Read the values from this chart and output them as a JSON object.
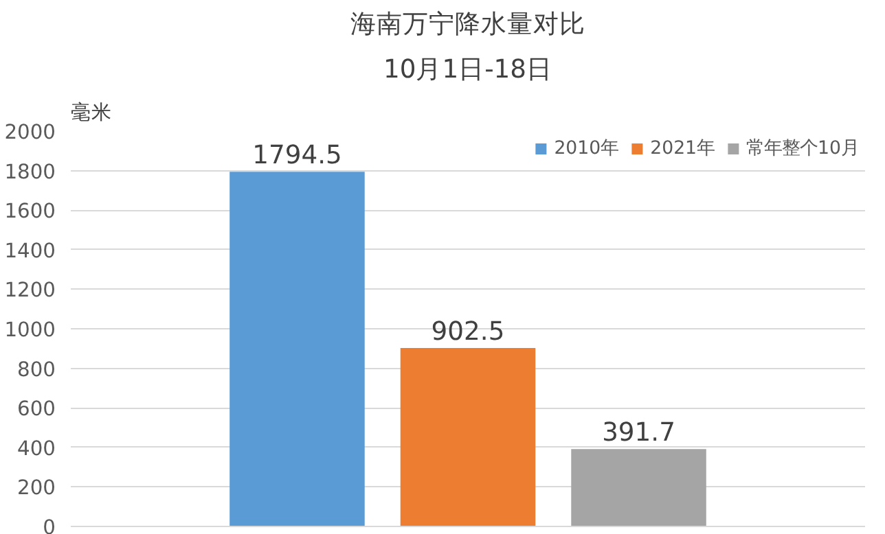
{
  "chart_data": {
    "type": "bar",
    "title": "海南万宁降水量对比",
    "subtitle": "10月1日-18日",
    "ylabel": "毫米",
    "categories": [
      null
    ],
    "series": [
      {
        "name": "2010年",
        "color": "#5b9bd5",
        "values": [
          1794.5
        ]
      },
      {
        "name": "2021年",
        "color": "#ed7d31",
        "values": [
          902.5
        ]
      },
      {
        "name": "常年整个10月",
        "color": "#a5a5a5",
        "values": [
          391.7
        ]
      }
    ],
    "ylim": [
      0,
      2000
    ],
    "yticks": [
      0,
      200,
      400,
      600,
      800,
      1000,
      1200,
      1400,
      1600,
      1800,
      2000
    ],
    "grid": "y",
    "legend": "top right",
    "data_labels": true,
    "tick_labels": "y"
  }
}
